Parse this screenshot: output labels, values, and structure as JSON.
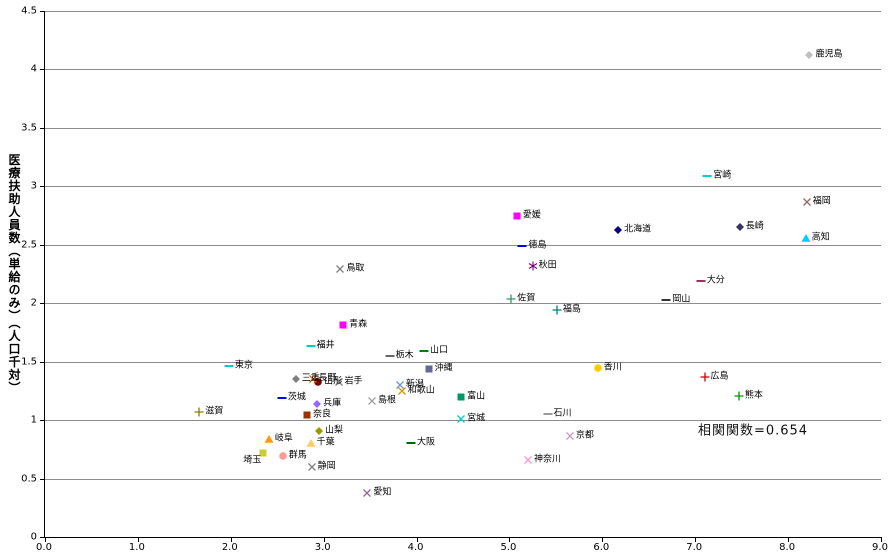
{
  "chart_data": {
    "type": "scatter",
    "title": "",
    "xlabel": "",
    "ylabel": "医療扶助人員数（単給のみ）（人口千対）",
    "xlim": [
      0,
      9
    ],
    "ylim": [
      0,
      4.5
    ],
    "grid": "horizontal-major",
    "legend": "none",
    "x_ticks": {
      "values": [
        0,
        1,
        2,
        3,
        4,
        5,
        6,
        7,
        8,
        9
      ],
      "labels": [
        "0.0",
        "1.0",
        "2.0",
        "3.0",
        "4.0",
        "5.0",
        "6.0",
        "7.0",
        "8.0",
        "9.0"
      ]
    },
    "y_ticks": {
      "values": [
        0,
        0.5,
        1,
        1.5,
        2,
        2.5,
        3,
        3.5,
        4,
        4.5
      ],
      "labels": [
        "0",
        "0.5",
        "1",
        "1.5",
        "2",
        "2.5",
        "3",
        "3.5",
        "4",
        "4.5"
      ]
    },
    "annotation": {
      "text": "相関関数=0.654",
      "x": 7.04,
      "y": 0.92
    },
    "points": [
      {
        "label": "北海道",
        "x": 6.17,
        "y": 2.63,
        "marker": "diamond",
        "color": "#000080"
      },
      {
        "label": "青森",
        "x": 3.21,
        "y": 1.81,
        "marker": "square",
        "color": "#FF00FF"
      },
      {
        "label": "岩手",
        "x": 3.16,
        "y": 1.33,
        "marker": "x",
        "color": "#808080"
      },
      {
        "label": "宮城",
        "x": 4.48,
        "y": 1.01,
        "marker": "x",
        "color": "#00CCCC"
      },
      {
        "label": "秋田",
        "x": 5.25,
        "y": 2.32,
        "marker": "asterisk",
        "color": "#800080"
      },
      {
        "label": "山形",
        "x": 2.94,
        "y": 1.33,
        "marker": "circle",
        "color": "#800000"
      },
      {
        "label": "福島",
        "x": 5.51,
        "y": 1.94,
        "marker": "plus",
        "color": "#008080"
      },
      {
        "label": "茨城",
        "x": 2.55,
        "y": 1.19,
        "marker": "dash",
        "color": "#0000FF"
      },
      {
        "label": "栃木",
        "x": 3.71,
        "y": 1.55,
        "marker": "dash",
        "color": "#666666"
      },
      {
        "label": "群馬",
        "x": 2.56,
        "y": 0.69,
        "marker": "circle",
        "color": "#FF9999"
      },
      {
        "label": "埼玉",
        "x": 2.35,
        "y": 0.72,
        "marker": "square",
        "color": "#CCCC33",
        "ldx": -20,
        "ldy": 8
      },
      {
        "label": "千葉",
        "x": 2.86,
        "y": 0.8,
        "marker": "triangle",
        "color": "#FFCC66"
      },
      {
        "label": "東京",
        "x": 1.98,
        "y": 1.46,
        "marker": "dash",
        "color": "#00CCCC"
      },
      {
        "label": "神奈川",
        "x": 5.2,
        "y": 0.66,
        "marker": "x",
        "color": "#FF99CC"
      },
      {
        "label": "新潟",
        "x": 3.82,
        "y": 1.3,
        "marker": "x",
        "color": "#6699CC"
      },
      {
        "label": "富山",
        "x": 4.48,
        "y": 1.2,
        "marker": "square",
        "color": "#009966"
      },
      {
        "label": "石川",
        "x": 5.41,
        "y": 1.05,
        "marker": "dash",
        "color": "#999999"
      },
      {
        "label": "福井",
        "x": 2.86,
        "y": 1.63,
        "marker": "dash",
        "color": "#00CCCC"
      },
      {
        "label": "山梨",
        "x": 2.95,
        "y": 0.91,
        "marker": "diamond",
        "color": "#999900"
      },
      {
        "label": "長野",
        "x": 2.88,
        "y": 1.35,
        "marker": "x",
        "color": "#CC6600"
      },
      {
        "label": "岐阜",
        "x": 2.41,
        "y": 0.84,
        "marker": "triangle",
        "color": "#FF9900"
      },
      {
        "label": "静岡",
        "x": 2.87,
        "y": 0.6,
        "marker": "x",
        "color": "#808080"
      },
      {
        "label": "愛知",
        "x": 3.47,
        "y": 0.38,
        "marker": "x",
        "color": "#996699"
      },
      {
        "label": "三重",
        "x": 2.7,
        "y": 1.35,
        "marker": "diamond",
        "color": "#808080"
      },
      {
        "label": "滋賀",
        "x": 1.66,
        "y": 1.07,
        "marker": "plus",
        "color": "#808000"
      },
      {
        "label": "京都",
        "x": 5.65,
        "y": 0.86,
        "marker": "x",
        "color": "#CC99CC"
      },
      {
        "label": "大阪",
        "x": 3.94,
        "y": 0.8,
        "marker": "dash",
        "color": "#006600"
      },
      {
        "label": "兵庫",
        "x": 2.93,
        "y": 1.14,
        "marker": "diamond",
        "color": "#9966FF"
      },
      {
        "label": "奈良",
        "x": 2.82,
        "y": 1.04,
        "marker": "square",
        "color": "#993300"
      },
      {
        "label": "和歌山",
        "x": 3.84,
        "y": 1.25,
        "marker": "x",
        "color": "#CC9900"
      },
      {
        "label": "鳥取",
        "x": 3.18,
        "y": 2.29,
        "marker": "x",
        "color": "#808080"
      },
      {
        "label": "島根",
        "x": 3.52,
        "y": 1.16,
        "marker": "x",
        "color": "#A0A0A0"
      },
      {
        "label": "岡山",
        "x": 6.69,
        "y": 2.03,
        "marker": "dash",
        "color": "#333333"
      },
      {
        "label": "広島",
        "x": 7.1,
        "y": 1.37,
        "marker": "plus",
        "color": "#CC0000"
      },
      {
        "label": "山口",
        "x": 4.08,
        "y": 1.59,
        "marker": "dash",
        "color": "#008000"
      },
      {
        "label": "徳島",
        "x": 5.14,
        "y": 2.49,
        "marker": "dash",
        "color": "#0000FF"
      },
      {
        "label": "香川",
        "x": 5.95,
        "y": 1.45,
        "marker": "circle",
        "color": "#FFCC00"
      },
      {
        "label": "愛媛",
        "x": 5.08,
        "y": 2.75,
        "marker": "square",
        "color": "#FF00FF"
      },
      {
        "label": "高知",
        "x": 8.19,
        "y": 2.56,
        "marker": "triangle",
        "color": "#00CCFF"
      },
      {
        "label": "福岡",
        "x": 8.2,
        "y": 2.87,
        "marker": "x",
        "color": "#996666"
      },
      {
        "label": "佐賀",
        "x": 5.02,
        "y": 2.04,
        "marker": "plus",
        "color": "#339966"
      },
      {
        "label": "長崎",
        "x": 7.48,
        "y": 2.65,
        "marker": "diamond",
        "color": "#333366"
      },
      {
        "label": "熊本",
        "x": 7.47,
        "y": 1.21,
        "marker": "plus",
        "color": "#009900"
      },
      {
        "label": "大分",
        "x": 7.06,
        "y": 2.19,
        "marker": "dash",
        "color": "#993366"
      },
      {
        "label": "宮崎",
        "x": 7.13,
        "y": 3.09,
        "marker": "dash",
        "color": "#00CCCC"
      },
      {
        "label": "鹿児島",
        "x": 8.23,
        "y": 4.12,
        "marker": "diamond",
        "color": "#C0C0C0"
      },
      {
        "label": "沖縄",
        "x": 4.13,
        "y": 1.44,
        "marker": "square",
        "color": "#666699"
      }
    ]
  }
}
